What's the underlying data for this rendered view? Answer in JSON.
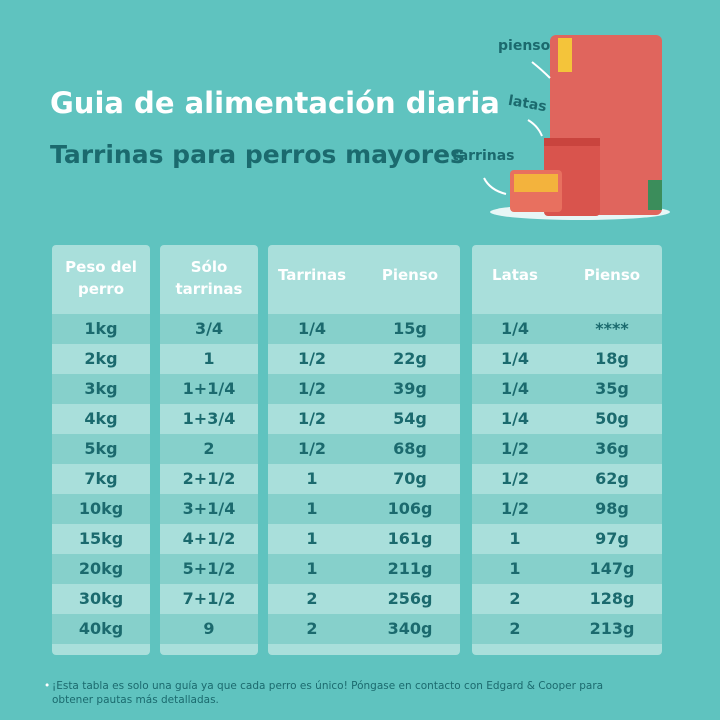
{
  "header": {
    "title": "Guia de alimentación diaria",
    "subtitle": "Tarrinas para perros mayores"
  },
  "product_labels": {
    "bag": "pienso",
    "can": "latas",
    "tray": "tarrinas"
  },
  "table": {
    "headers": [
      "Peso del perro",
      "Sólo tarrinas",
      "Tarrinas",
      "Pienso",
      "Latas",
      "Pienso"
    ],
    "rows": [
      [
        "1kg",
        "3/4",
        "1/4",
        "15g",
        "1/4",
        "****"
      ],
      [
        "2kg",
        "1",
        "1/2",
        "22g",
        "1/4",
        "18g"
      ],
      [
        "3kg",
        "1+1/4",
        "1/2",
        "39g",
        "1/4",
        "35g"
      ],
      [
        "4kg",
        "1+3/4",
        "1/2",
        "54g",
        "1/4",
        "50g"
      ],
      [
        "5kg",
        "2",
        "1/2",
        "68g",
        "1/2",
        "36g"
      ],
      [
        "7kg",
        "2+1/2",
        "1",
        "70g",
        "1/2",
        "62g"
      ],
      [
        "10kg",
        "3+1/4",
        "1",
        "106g",
        "1/2",
        "98g"
      ],
      [
        "15kg",
        "4+1/2",
        "1",
        "161g",
        "1",
        "97g"
      ],
      [
        "20kg",
        "5+1/2",
        "1",
        "211g",
        "1",
        "147g"
      ],
      [
        "30kg",
        "7+1/2",
        "2",
        "256g",
        "2",
        "128g"
      ],
      [
        "40kg",
        "9",
        "2",
        "340g",
        "2",
        "213g"
      ]
    ]
  },
  "footnote": "¡Esta tabla es solo una guía ya que cada perro es único! Póngase en contacto con Edgard & Cooper para obtener pautas más detalladas."
}
